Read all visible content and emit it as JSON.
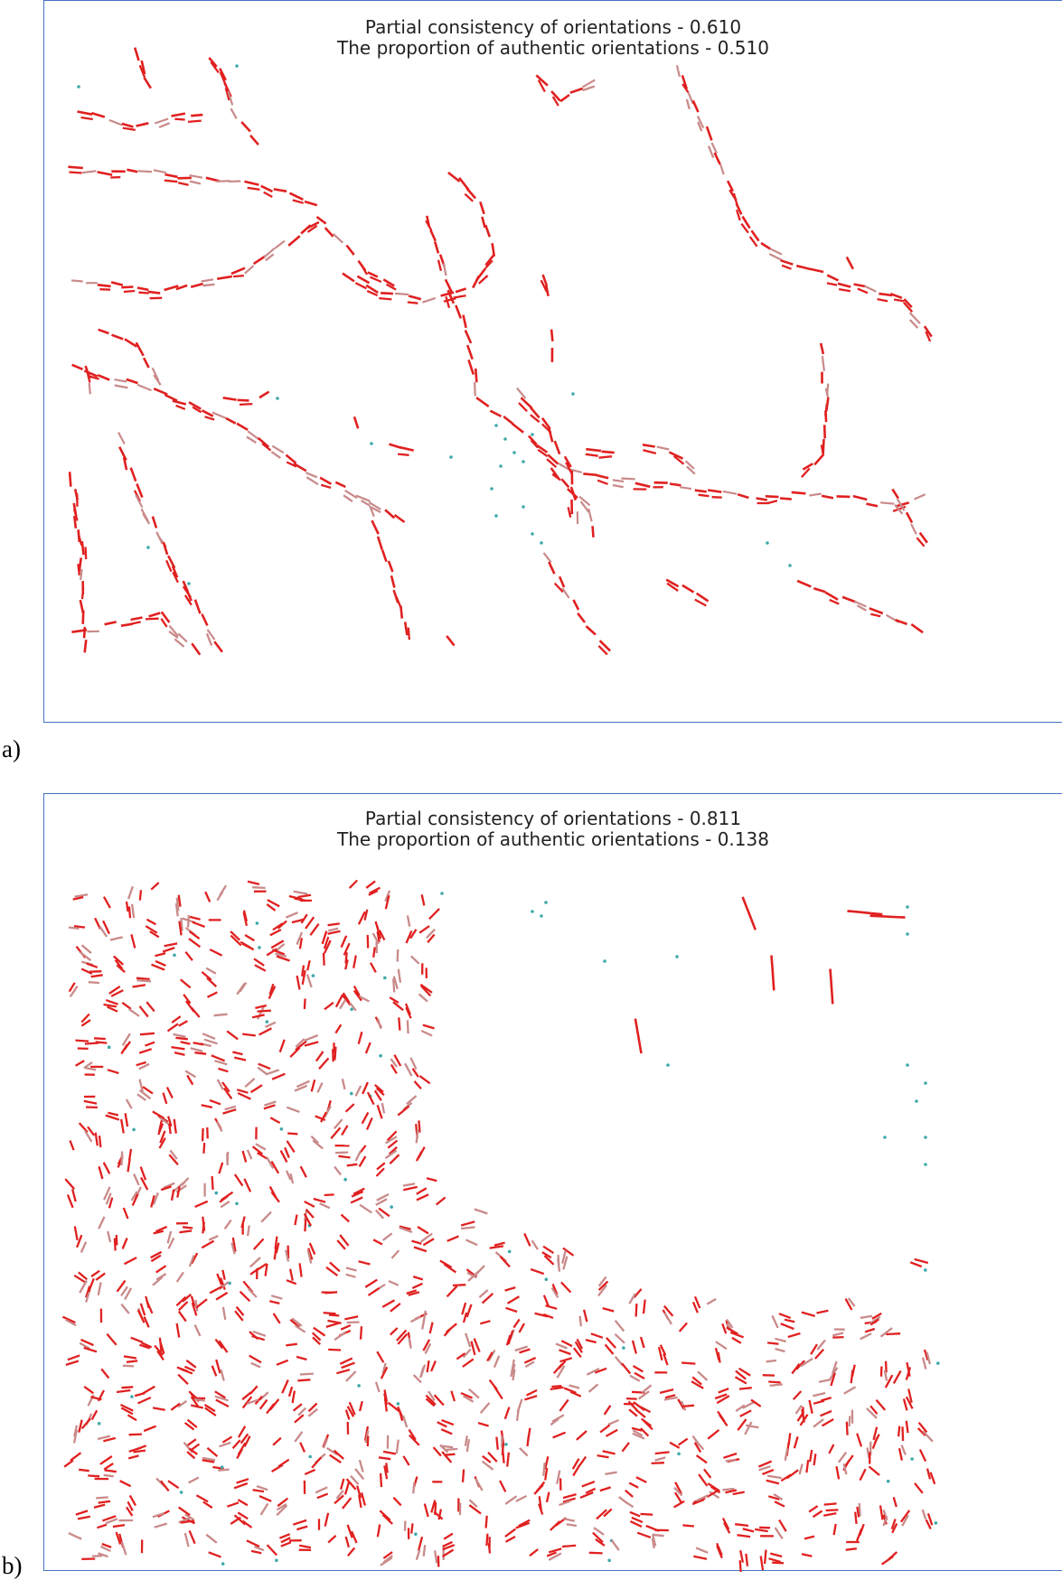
{
  "panels": [
    {
      "label": "a)",
      "title_line1": "Partial consistency of orientations - 0.610",
      "title_line2": "The proportion of authentic orientations - 0.510",
      "partial_consistency": 0.61,
      "authentic_proportion": 0.51,
      "style": "traced"
    },
    {
      "label": "b)",
      "title_line1": "Partial consistency of orientations - 0.811",
      "title_line2": "The proportion of authentic orientations - 0.138",
      "partial_consistency": 0.811,
      "authentic_proportion": 0.138,
      "style": "dense"
    }
  ],
  "colors": {
    "consistent": "#e02020",
    "inconsistent": "#c98a8a",
    "singular": "#3fa9a9",
    "frame": "#4472c4"
  }
}
